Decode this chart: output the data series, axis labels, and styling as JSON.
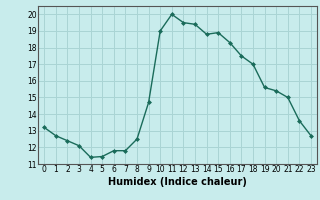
{
  "x": [
    0,
    1,
    2,
    3,
    4,
    5,
    6,
    7,
    8,
    9,
    10,
    11,
    12,
    13,
    14,
    15,
    16,
    17,
    18,
    19,
    20,
    21,
    22,
    23
  ],
  "y": [
    13.2,
    12.7,
    12.4,
    12.1,
    11.4,
    11.45,
    11.8,
    11.8,
    12.5,
    14.7,
    19.0,
    20.0,
    19.5,
    19.4,
    18.8,
    18.9,
    18.3,
    17.5,
    17.0,
    15.6,
    15.4,
    15.0,
    13.6,
    12.7
  ],
  "line_color": "#1a6b5a",
  "marker": "D",
  "markersize": 2,
  "bg_color": "#c8ecec",
  "grid_color": "#aad4d4",
  "xlabel": "Humidex (Indice chaleur)",
  "xlabel_weight": "bold",
  "xlim": [
    -0.5,
    23.5
  ],
  "ylim": [
    11,
    20.5
  ],
  "yticks": [
    11,
    12,
    13,
    14,
    15,
    16,
    17,
    18,
    19,
    20
  ],
  "xticks": [
    0,
    1,
    2,
    3,
    4,
    5,
    6,
    7,
    8,
    9,
    10,
    11,
    12,
    13,
    14,
    15,
    16,
    17,
    18,
    19,
    20,
    21,
    22,
    23
  ],
  "tick_fontsize": 5.5,
  "label_fontsize": 7
}
